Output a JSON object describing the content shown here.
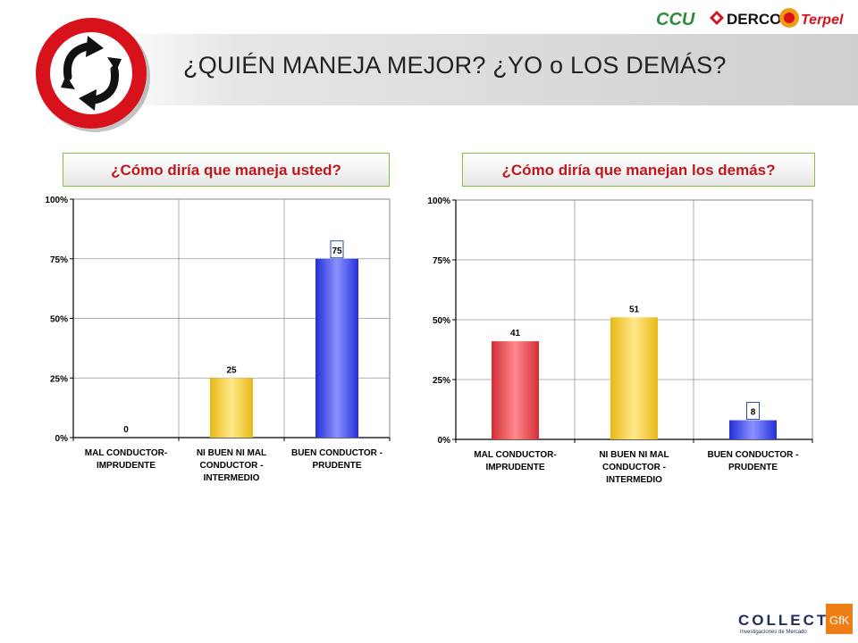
{
  "header": {
    "title": "¿QUIÉN MANEJA MEJOR? ¿YO o LOS DEMÁS?",
    "logos": [
      "CCU",
      "DERCO",
      "Terpel"
    ]
  },
  "footer": {
    "brand": "COLLECT",
    "tagline": "Investigaciones de Mercado",
    "badge": "GfK"
  },
  "colors": {
    "question_text": "#c0171c",
    "question_border": "#8bbf3f",
    "bar_red": "#f0414a",
    "bar_yellow": "#f7cf2e",
    "bar_blue": "#3b45f0"
  },
  "chart_data": [
    {
      "type": "bar",
      "title": "¿Cómo diría que maneja usted?",
      "categories": [
        "MAL CONDUCTOR-\nIMPRUDENTE",
        "NI BUEN NI MAL\nCONDUCTOR -\nINTERMEDIO",
        "BUEN CONDUCTOR -\nPRUDENTE"
      ],
      "values": [
        0,
        25,
        75
      ],
      "data_labels": [
        "0",
        "25",
        "75"
      ],
      "yticks": [
        "0%",
        "25%",
        "50%",
        "75%",
        "100%"
      ],
      "ylim": [
        0,
        100
      ],
      "grid": true
    },
    {
      "type": "bar",
      "title": "¿Cómo diría que manejan los demás?",
      "categories": [
        "MAL CONDUCTOR-\nIMPRUDENTE",
        "NI BUEN NI MAL\nCONDUCTOR -\nINTERMEDIO",
        "BUEN CONDUCTOR -\nPRUDENTE"
      ],
      "values": [
        41,
        51,
        8
      ],
      "data_labels": [
        "41",
        "51",
        "8"
      ],
      "yticks": [
        "0%",
        "25%",
        "50%",
        "75%",
        "100%"
      ],
      "ylim": [
        0,
        100
      ],
      "grid": true
    }
  ]
}
